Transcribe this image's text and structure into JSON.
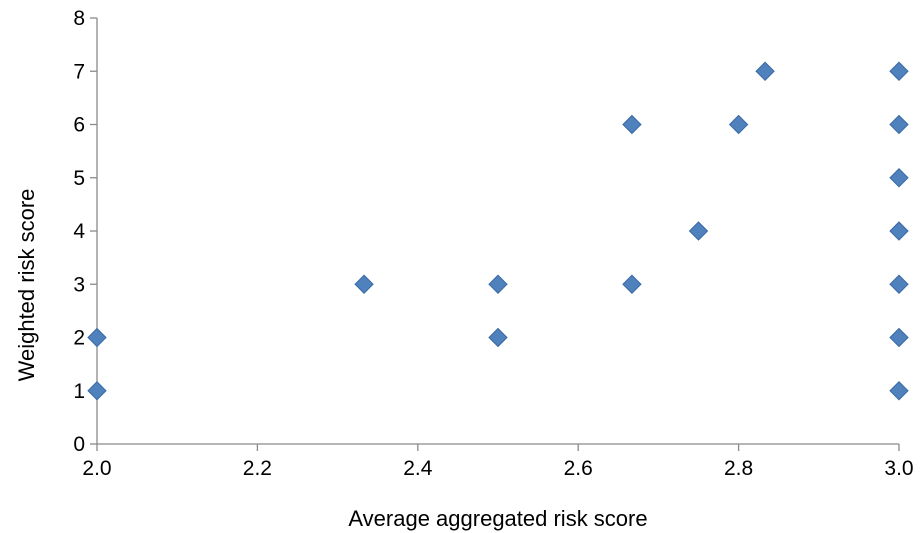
{
  "chart_data": {
    "type": "scatter",
    "title": "",
    "xlabel": "Average aggregated risk score",
    "ylabel": "Weighted risk score",
    "xlim": [
      2.0,
      3.0
    ],
    "ylim": [
      0,
      8
    ],
    "xticks": [
      "2.0",
      "2.2",
      "2.4",
      "2.6",
      "2.8",
      "3.0"
    ],
    "yticks": [
      "0",
      "1",
      "2",
      "3",
      "4",
      "5",
      "6",
      "7",
      "8"
    ],
    "grid": false,
    "legend": "none",
    "marker": "diamond",
    "marker_color": "#4f81bd",
    "series": [
      {
        "x": [
          2.0,
          2.0,
          2.333,
          2.5,
          2.5,
          2.667,
          2.667,
          2.75,
          2.8,
          2.833,
          3.0,
          3.0,
          3.0,
          3.0,
          3.0,
          3.0,
          3.0
        ],
        "y": [
          1,
          2,
          3,
          2,
          3,
          3,
          6,
          4,
          6,
          7,
          1,
          2,
          3,
          4,
          5,
          6,
          7
        ]
      }
    ]
  }
}
